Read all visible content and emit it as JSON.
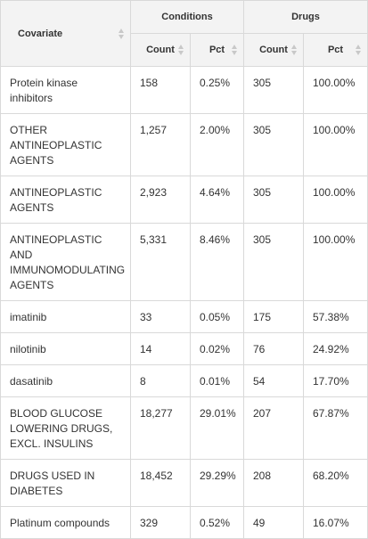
{
  "header": {
    "covariate": "Covariate",
    "groups": [
      "Conditions",
      "Drugs"
    ],
    "sub": [
      "Count",
      "Pct",
      "Count",
      "Pct"
    ]
  },
  "rows": [
    {
      "covariate": "Protein kinase inhibitors",
      "cond_count": "158",
      "cond_pct": "0.25%",
      "drug_count": "305",
      "drug_pct": "100.00%"
    },
    {
      "covariate": "OTHER ANTINEOPLASTIC AGENTS",
      "cond_count": "1,257",
      "cond_pct": "2.00%",
      "drug_count": "305",
      "drug_pct": "100.00%"
    },
    {
      "covariate": "ANTINEOPLASTIC AGENTS",
      "cond_count": "2,923",
      "cond_pct": "4.64%",
      "drug_count": "305",
      "drug_pct": "100.00%"
    },
    {
      "covariate": "ANTINEOPLASTIC AND IMMUNOMODULATING AGENTS",
      "cond_count": "5,331",
      "cond_pct": "8.46%",
      "drug_count": "305",
      "drug_pct": "100.00%"
    },
    {
      "covariate": "imatinib",
      "cond_count": "33",
      "cond_pct": "0.05%",
      "drug_count": "175",
      "drug_pct": "57.38%"
    },
    {
      "covariate": "nilotinib",
      "cond_count": "14",
      "cond_pct": "0.02%",
      "drug_count": "76",
      "drug_pct": "24.92%"
    },
    {
      "covariate": "dasatinib",
      "cond_count": "8",
      "cond_pct": "0.01%",
      "drug_count": "54",
      "drug_pct": "17.70%"
    },
    {
      "covariate": "BLOOD GLUCOSE LOWERING DRUGS, EXCL. INSULINS",
      "cond_count": "18,277",
      "cond_pct": "29.01%",
      "drug_count": "207",
      "drug_pct": "67.87%"
    },
    {
      "covariate": "DRUGS USED IN DIABETES",
      "cond_count": "18,452",
      "cond_pct": "29.29%",
      "drug_count": "208",
      "drug_pct": "68.20%"
    },
    {
      "covariate": "Platinum compounds",
      "cond_count": "329",
      "cond_pct": "0.52%",
      "drug_count": "49",
      "drug_pct": "16.07%"
    }
  ],
  "icons": {
    "sort": "sort-icon"
  }
}
